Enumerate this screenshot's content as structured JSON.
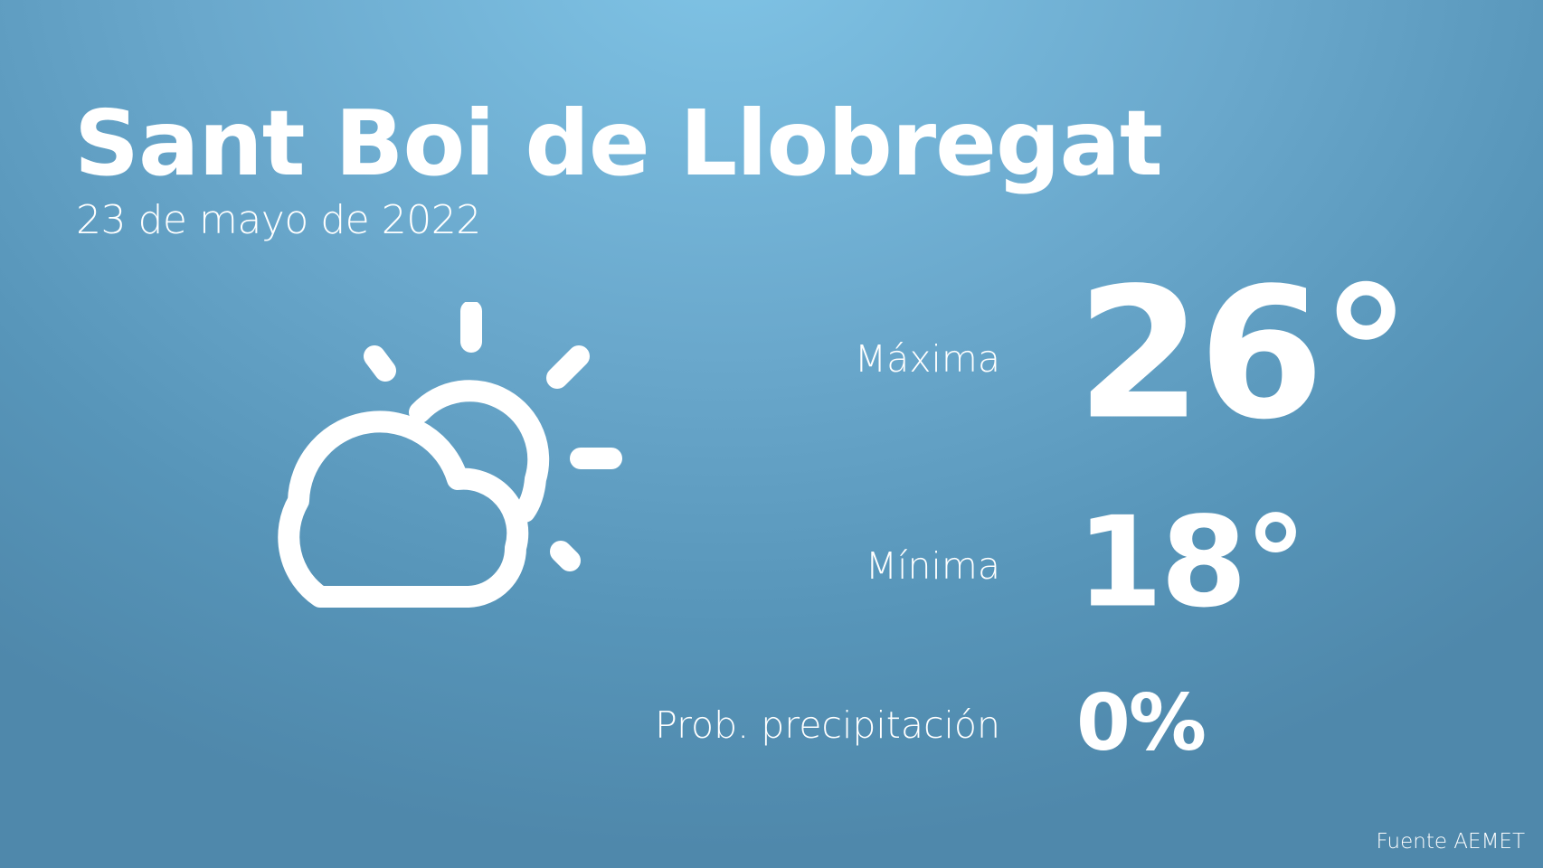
{
  "location": "Sant Boi de Llobregat",
  "date": "23 de mayo de 2022",
  "weather_icon": "partly-cloudy-icon",
  "max": {
    "label": "Máxima",
    "value": "26°"
  },
  "min": {
    "label": "Mínima",
    "value": "18°"
  },
  "precip": {
    "label": "Prob. precipitación",
    "value": "0%"
  },
  "source": "Fuente AEMET"
}
